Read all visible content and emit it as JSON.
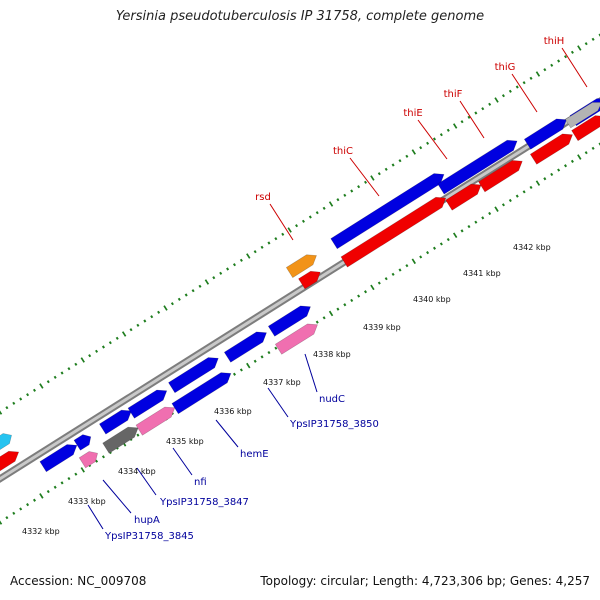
{
  "title": "Yersinia pseudotuberculosis IP 31758, complete genome",
  "footer": {
    "accession": "Accession: NC_009708",
    "stats": "Topology: circular; Length: 4,723,306 bp; Genes: 4,257"
  },
  "colors": {
    "backbone": "#9a9a9a",
    "forward_cds": "#0000e0",
    "reverse_cds": "#f00000",
    "rna": "#f06fb0",
    "pseudo": "#666666",
    "other": "#f29318",
    "cyan": "#26c3f0",
    "tick": "#1e7d1e",
    "label_reverse": "#cc0000",
    "label_forward": "#00009c"
  },
  "scale": {
    "unit": "kbp",
    "labels": [
      "4332 kbp",
      "4333 kbp",
      "4334 kbp",
      "4335 kbp",
      "4336 kbp",
      "4337 kbp",
      "4338 kbp",
      "4339 kbp",
      "4340 kbp",
      "4341 kbp",
      "4342 kbp"
    ]
  },
  "gene_labels": {
    "top": [
      "rsd",
      "thiC",
      "thiE",
      "thiF",
      "thiG",
      "thiH"
    ],
    "bottom": [
      "YpsIP31758_3845",
      "hupA",
      "YpsIP31758_3847",
      "nfi",
      "hemE",
      "YpsIP31758_3850",
      "nudC"
    ]
  }
}
